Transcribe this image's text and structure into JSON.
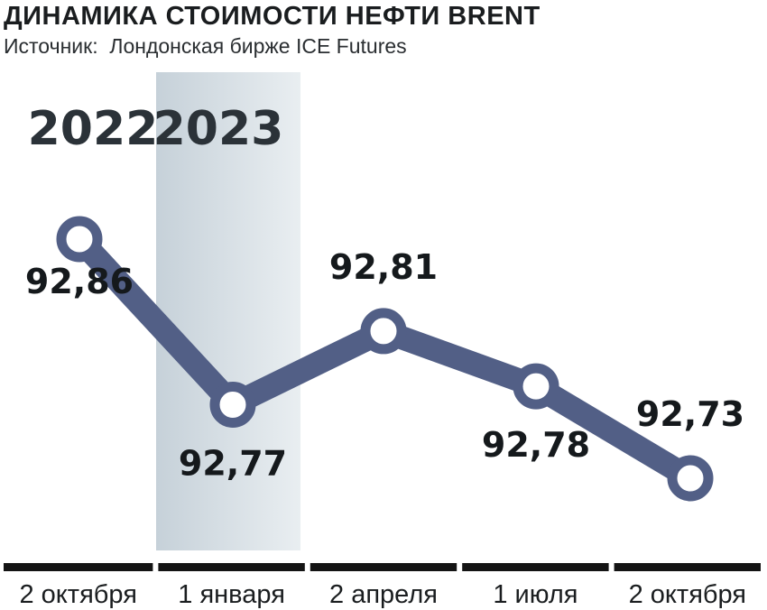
{
  "header": {
    "title": "ДИНАМИКА СТОИМОСТИ НЕФТИ BRENT",
    "subtitle": "Источник:  Лондонская бирже ICE Futures"
  },
  "chart_data": {
    "type": "line",
    "title": "ДИНАМИКА СТОИМОСТИ НЕФТИ BRENT",
    "subtitle": "Источник:  Лондонская бирже ICE Futures",
    "categories": [
      "2 октября",
      "1 января",
      "2 апреля",
      "1 июля",
      "2 октября"
    ],
    "series": [
      {
        "values": [
          92.86,
          92.77,
          92.81,
          92.78,
          92.73
        ],
        "labels": [
          "92,86",
          "92,77",
          "92,81",
          "92,78",
          "92,73"
        ]
      }
    ],
    "year_labels": [
      "2022",
      "2023"
    ],
    "ylim": [
      92.72,
      92.87
    ],
    "grid": false,
    "legend": "none",
    "colors": {
      "line": "#525f86",
      "marker_fill": "#ffffff",
      "year_band": "#c6d1d9",
      "year_band_light": "#e9eef1",
      "axis_segment": "#141414"
    }
  }
}
